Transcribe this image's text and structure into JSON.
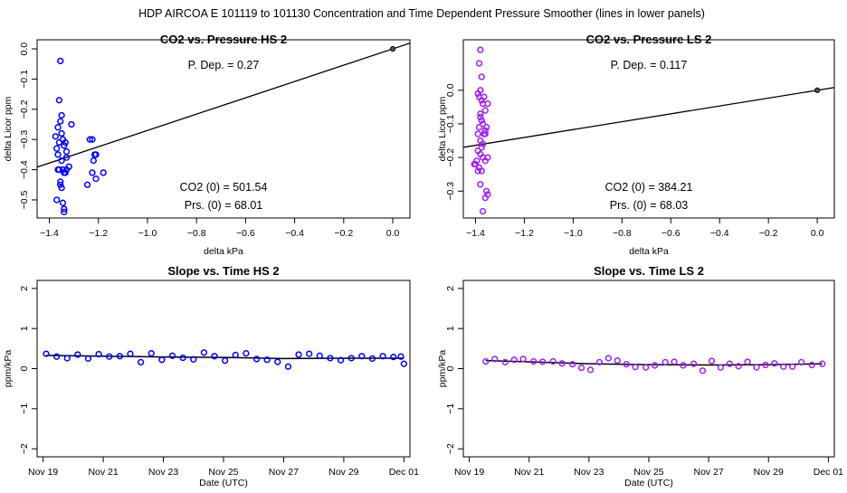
{
  "page_title": "HDP   AIRCOA E   101119 to 101130   Concentration and Time Dependent Pressure Smoother (lines in lower panels)",
  "colors": {
    "hs": "#0000ff",
    "ls": "#a020f0",
    "fit": "#000000",
    "frame": "#000000"
  },
  "chart_data": [
    {
      "id": "hs-co2",
      "type": "scatter",
      "title": "CO2 vs. Pressure HS 2",
      "xlabel": "delta kPa",
      "ylabel": "delta Licor ppm",
      "xlim": [
        -1.45,
        0.07
      ],
      "ylim": [
        -0.56,
        0.03
      ],
      "xticks": [
        -1.4,
        -1.2,
        -1.0,
        -0.8,
        -0.6,
        -0.4,
        -0.2,
        0.0
      ],
      "xtick_labels": [
        "−1.4",
        "−1.2",
        "−1.0",
        "−0.8",
        "−0.6",
        "−0.4",
        "−0.2",
        "0.0"
      ],
      "yticks": [
        0.0,
        -0.1,
        -0.2,
        -0.3,
        -0.4,
        -0.5
      ],
      "ytick_labels": [
        "0.0",
        "−0.1",
        "−0.2",
        "−0.3",
        "−0.4",
        "−0.5"
      ],
      "color": "#0000ff",
      "annotations": {
        "pdep": "P. Dep. =  0.27",
        "co2": "CO2 (0) =  501.54",
        "prs": "Prs. (0) =  68.01"
      },
      "fit_line": {
        "slope": 0.27,
        "intercept": 0.0
      },
      "origin_point": [
        0.0,
        0.0
      ],
      "points": [
        [
          -1.355,
          -0.04
        ],
        [
          -1.36,
          -0.17
        ],
        [
          -1.365,
          -0.26
        ],
        [
          -1.355,
          -0.24
        ],
        [
          -1.35,
          -0.28
        ],
        [
          -1.345,
          -0.3
        ],
        [
          -1.34,
          -0.32
        ],
        [
          -1.335,
          -0.31
        ],
        [
          -1.33,
          -0.36
        ],
        [
          -1.36,
          -0.31
        ],
        [
          -1.365,
          -0.35
        ],
        [
          -1.37,
          -0.33
        ],
        [
          -1.35,
          -0.37
        ],
        [
          -1.345,
          -0.4
        ],
        [
          -1.34,
          -0.41
        ],
        [
          -1.36,
          -0.4
        ],
        [
          -1.355,
          -0.44
        ],
        [
          -1.35,
          -0.46
        ],
        [
          -1.345,
          -0.51
        ],
        [
          -1.34,
          -0.54
        ],
        [
          -1.335,
          -0.41
        ],
        [
          -1.33,
          -0.34
        ],
        [
          -1.375,
          -0.29
        ],
        [
          -1.31,
          -0.25
        ],
        [
          -1.32,
          -0.39
        ],
        [
          -1.33,
          -0.4
        ],
        [
          -1.34,
          -0.53
        ],
        [
          -1.37,
          -0.5
        ],
        [
          -1.365,
          -0.4
        ],
        [
          -1.355,
          -0.45
        ],
        [
          -1.235,
          -0.3
        ],
        [
          -1.225,
          -0.3
        ],
        [
          -1.215,
          -0.35
        ],
        [
          -1.21,
          -0.35
        ],
        [
          -1.22,
          -0.37
        ],
        [
          -1.225,
          -0.41
        ],
        [
          -1.21,
          -0.43
        ],
        [
          -1.18,
          -0.41
        ],
        [
          -1.245,
          -0.45
        ],
        [
          -1.35,
          -0.22
        ]
      ]
    },
    {
      "id": "ls-co2",
      "type": "scatter",
      "title": "CO2 vs. Pressure LS 2",
      "xlabel": "delta kPa",
      "ylabel": "delta Licor ppm",
      "xlim": [
        -1.45,
        0.07
      ],
      "ylim": [
        -0.38,
        0.15
      ],
      "xticks": [
        -1.4,
        -1.2,
        -1.0,
        -0.8,
        -0.6,
        -0.4,
        -0.2,
        0.0
      ],
      "xtick_labels": [
        "−1.4",
        "−1.2",
        "−1.0",
        "−0.8",
        "−0.6",
        "−0.4",
        "−0.2",
        "0.0"
      ],
      "yticks": [
        0.0,
        -0.1,
        -0.2,
        -0.3
      ],
      "ytick_labels": [
        "0.0",
        "−0.1",
        "−0.2",
        "−0.3"
      ],
      "color": "#a020f0",
      "annotations": {
        "pdep": "P. Dep. =  0.117",
        "co2": "CO2 (0) =  384.21",
        "prs": "Prs. (0) =  68.03"
      },
      "fit_line": {
        "slope": 0.117,
        "intercept": 0.0
      },
      "origin_point": [
        0.0,
        0.0
      ],
      "points": [
        [
          -1.38,
          0.12
        ],
        [
          -1.385,
          0.08
        ],
        [
          -1.375,
          0.04
        ],
        [
          -1.38,
          0.0
        ],
        [
          -1.39,
          -0.01
        ],
        [
          -1.385,
          -0.02
        ],
        [
          -1.375,
          -0.03
        ],
        [
          -1.37,
          -0.04
        ],
        [
          -1.36,
          -0.06
        ],
        [
          -1.38,
          -0.07
        ],
        [
          -1.375,
          -0.09
        ],
        [
          -1.37,
          -0.1
        ],
        [
          -1.385,
          -0.11
        ],
        [
          -1.36,
          -0.12
        ],
        [
          -1.39,
          -0.13
        ],
        [
          -1.38,
          -0.15
        ],
        [
          -1.375,
          -0.17
        ],
        [
          -1.39,
          -0.18
        ],
        [
          -1.38,
          -0.19
        ],
        [
          -1.37,
          -0.2
        ],
        [
          -1.36,
          -0.21
        ],
        [
          -1.35,
          -0.2
        ],
        [
          -1.395,
          -0.21
        ],
        [
          -1.4,
          -0.22
        ],
        [
          -1.385,
          -0.23
        ],
        [
          -1.375,
          -0.24
        ],
        [
          -1.39,
          -0.24
        ],
        [
          -1.405,
          -0.22
        ],
        [
          -1.36,
          -0.13
        ],
        [
          -1.355,
          -0.11
        ],
        [
          -1.35,
          -0.04
        ],
        [
          -1.365,
          -0.02
        ],
        [
          -1.38,
          -0.28
        ],
        [
          -1.355,
          -0.3
        ],
        [
          -1.36,
          -0.32
        ],
        [
          -1.35,
          -0.31
        ],
        [
          -1.37,
          -0.36
        ],
        [
          -1.365,
          -0.13
        ],
        [
          -1.37,
          -0.16
        ],
        [
          -1.38,
          -0.08
        ]
      ]
    },
    {
      "id": "hs-slope",
      "type": "scatter",
      "title": "Slope vs. Time HS 2",
      "xlabel": "Date (UTC)",
      "ylabel": "ppm/kPa",
      "xlim": [
        -0.2,
        12.2
      ],
      "ylim": [
        -2.2,
        2.2
      ],
      "xticks": [
        0,
        2,
        4,
        6,
        8,
        10,
        12
      ],
      "xtick_labels": [
        "Nov 19",
        "Nov 21",
        "Nov 23",
        "Nov 25",
        "Nov 27",
        "Nov 29",
        "Dec 01"
      ],
      "yticks": [
        2,
        1,
        0,
        -1,
        -2
      ],
      "ytick_labels": [
        "2",
        "1",
        "0",
        "−1",
        "−2"
      ],
      "color": "#0000ff",
      "points": [
        [
          0.1,
          0.37
        ],
        [
          0.45,
          0.3
        ],
        [
          0.8,
          0.26
        ],
        [
          1.15,
          0.35
        ],
        [
          1.5,
          0.25
        ],
        [
          1.85,
          0.36
        ],
        [
          2.2,
          0.3
        ],
        [
          2.55,
          0.31
        ],
        [
          2.9,
          0.37
        ],
        [
          3.25,
          0.16
        ],
        [
          3.6,
          0.38
        ],
        [
          3.95,
          0.22
        ],
        [
          4.3,
          0.32
        ],
        [
          4.65,
          0.27
        ],
        [
          5.0,
          0.23
        ],
        [
          5.35,
          0.4
        ],
        [
          5.7,
          0.31
        ],
        [
          6.05,
          0.2
        ],
        [
          6.4,
          0.34
        ],
        [
          6.75,
          0.38
        ],
        [
          7.1,
          0.24
        ],
        [
          7.45,
          0.22
        ],
        [
          7.8,
          0.17
        ],
        [
          8.15,
          0.05
        ],
        [
          8.5,
          0.35
        ],
        [
          8.85,
          0.37
        ],
        [
          9.2,
          0.32
        ],
        [
          9.55,
          0.26
        ],
        [
          9.9,
          0.21
        ],
        [
          10.25,
          0.26
        ],
        [
          10.6,
          0.31
        ],
        [
          10.95,
          0.25
        ],
        [
          11.3,
          0.31
        ],
        [
          11.65,
          0.29
        ],
        [
          11.9,
          0.3
        ],
        [
          12.0,
          0.12
        ]
      ],
      "smooth": [
        [
          0.1,
          0.33
        ],
        [
          2.0,
          0.31
        ],
        [
          4.0,
          0.29
        ],
        [
          6.0,
          0.28
        ],
        [
          8.0,
          0.25
        ],
        [
          10.0,
          0.26
        ],
        [
          12.0,
          0.26
        ]
      ]
    },
    {
      "id": "ls-slope",
      "type": "scatter",
      "title": "Slope vs. Time LS 2",
      "xlabel": "Date (UTC)",
      "ylabel": "ppm/kPa",
      "xlim": [
        -0.2,
        12.2
      ],
      "ylim": [
        -2.2,
        2.2
      ],
      "xticks": [
        0,
        2,
        4,
        6,
        8,
        10,
        12
      ],
      "xtick_labels": [
        "Nov 19",
        "Nov 21",
        "Nov 23",
        "Nov 25",
        "Nov 27",
        "Nov 29",
        "Dec 01"
      ],
      "yticks": [
        2,
        1,
        0,
        -1,
        -2
      ],
      "ytick_labels": [
        "2",
        "1",
        "0",
        "−1",
        "−2"
      ],
      "color": "#a020f0",
      "points": [
        [
          0.55,
          0.18
        ],
        [
          0.85,
          0.24
        ],
        [
          1.2,
          0.16
        ],
        [
          1.5,
          0.22
        ],
        [
          1.8,
          0.24
        ],
        [
          2.15,
          0.18
        ],
        [
          2.45,
          0.17
        ],
        [
          2.8,
          0.18
        ],
        [
          3.1,
          0.13
        ],
        [
          3.45,
          0.11
        ],
        [
          3.75,
          0.02
        ],
        [
          4.05,
          -0.03
        ],
        [
          4.35,
          0.16
        ],
        [
          4.65,
          0.26
        ],
        [
          4.95,
          0.2
        ],
        [
          5.25,
          0.11
        ],
        [
          5.55,
          0.04
        ],
        [
          5.9,
          0.03
        ],
        [
          6.2,
          0.08
        ],
        [
          6.55,
          0.16
        ],
        [
          6.85,
          0.17
        ],
        [
          7.15,
          0.08
        ],
        [
          7.5,
          0.12
        ],
        [
          7.8,
          -0.05
        ],
        [
          8.1,
          0.19
        ],
        [
          8.4,
          0.03
        ],
        [
          8.7,
          0.12
        ],
        [
          9.0,
          0.06
        ],
        [
          9.3,
          0.17
        ],
        [
          9.6,
          0.03
        ],
        [
          9.9,
          0.09
        ],
        [
          10.2,
          0.13
        ],
        [
          10.5,
          0.05
        ],
        [
          10.8,
          0.05
        ],
        [
          11.1,
          0.16
        ],
        [
          11.45,
          0.09
        ],
        [
          11.8,
          0.12
        ]
      ],
      "smooth": [
        [
          0.55,
          0.2
        ],
        [
          2.0,
          0.17
        ],
        [
          4.0,
          0.12
        ],
        [
          6.0,
          0.1
        ],
        [
          8.0,
          0.09
        ],
        [
          10.0,
          0.1
        ],
        [
          11.8,
          0.12
        ]
      ]
    }
  ]
}
